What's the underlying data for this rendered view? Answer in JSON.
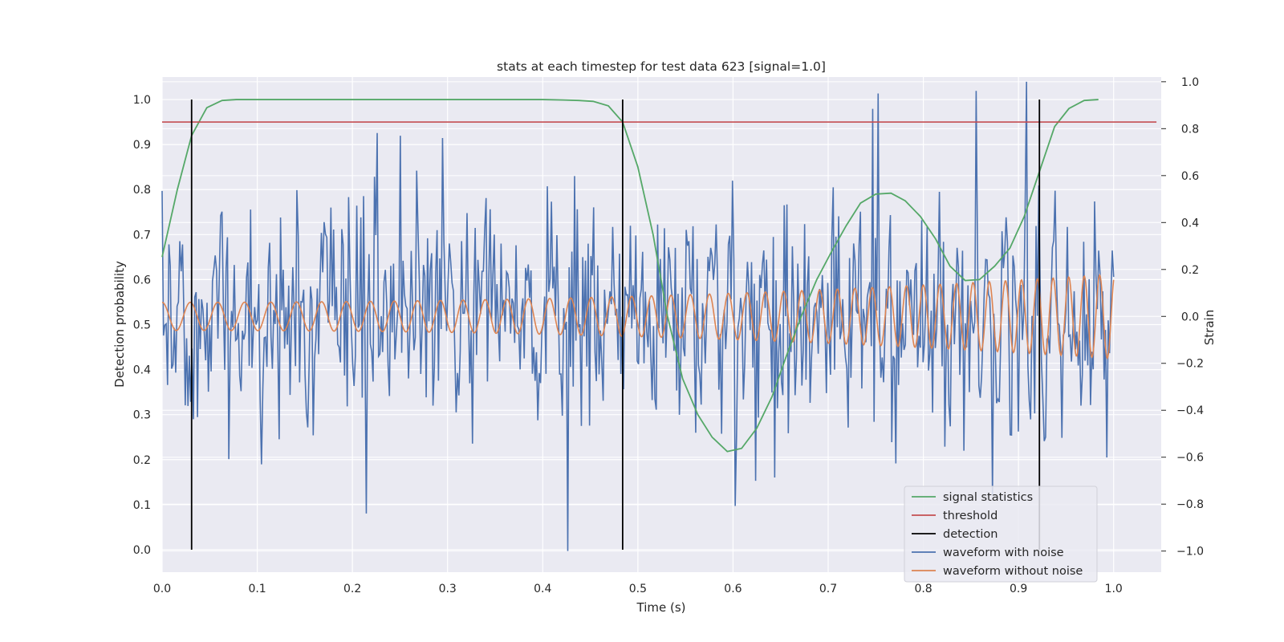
{
  "chart_data": {
    "type": "line",
    "title": "stats at each timestep for test data 623 [signal=1.0]",
    "xlabel": "Time (s)",
    "ylabel_left": "Detection probability",
    "ylabel_right": "Strain",
    "xlim": [
      0.0,
      1.05
    ],
    "ylim_left": [
      -0.05,
      1.05
    ],
    "ylim_right": [
      -1.09,
      1.02
    ],
    "x_ticks": [
      "0.0",
      "0.1",
      "0.2",
      "0.3",
      "0.4",
      "0.5",
      "0.6",
      "0.7",
      "0.8",
      "0.9",
      "1.0"
    ],
    "y_ticks_left": [
      "0.0",
      "0.1",
      "0.2",
      "0.3",
      "0.4",
      "0.5",
      "0.6",
      "0.7",
      "0.8",
      "0.9",
      "1.0"
    ],
    "y_ticks_right": [
      "−1.0",
      "−0.8",
      "−0.6",
      "−0.4",
      "−0.2",
      "0.0",
      "0.2",
      "0.4",
      "0.6",
      "0.8",
      "1.0"
    ],
    "grid": true,
    "legend_position": "lower-right",
    "colors": {
      "signal_statistics": "#55a868",
      "threshold": "#c44e52",
      "detection": "#000000",
      "waveform_with_noise": "#4c72b0",
      "waveform_without_noise": "#dd8452",
      "plot_background": "#eaeaf2",
      "grid": "#ffffff"
    },
    "legend": [
      {
        "key": "signal_statistics",
        "label": "signal statistics"
      },
      {
        "key": "threshold",
        "label": "threshold"
      },
      {
        "key": "detection",
        "label": "detection"
      },
      {
        "key": "waveform_with_noise",
        "label": "waveform with noise"
      },
      {
        "key": "waveform_without_noise",
        "label": "waveform without noise"
      }
    ],
    "series": [
      {
        "name": "signal statistics",
        "axis": "left",
        "x": [
          0.0,
          0.016,
          0.031,
          0.047,
          0.063,
          0.078,
          0.094,
          0.11,
          0.2,
          0.3,
          0.4,
          0.422,
          0.438,
          0.453,
          0.469,
          0.484,
          0.5,
          0.516,
          0.531,
          0.547,
          0.563,
          0.578,
          0.594,
          0.609,
          0.625,
          0.641,
          0.656,
          0.672,
          0.688,
          0.703,
          0.719,
          0.734,
          0.75,
          0.766,
          0.781,
          0.797,
          0.813,
          0.828,
          0.844,
          0.859,
          0.875,
          0.891,
          0.906,
          0.922,
          0.938,
          0.953,
          0.969,
          0.984
        ],
        "y": [
          0.65,
          0.8,
          0.92,
          0.982,
          0.998,
          1.0,
          1.0,
          1.0,
          1.0,
          1.0,
          1.0,
          0.999,
          0.998,
          0.996,
          0.986,
          0.95,
          0.85,
          0.7,
          0.52,
          0.38,
          0.3,
          0.25,
          0.218,
          0.225,
          0.27,
          0.34,
          0.43,
          0.52,
          0.6,
          0.66,
          0.72,
          0.77,
          0.79,
          0.792,
          0.775,
          0.74,
          0.69,
          0.63,
          0.598,
          0.6,
          0.63,
          0.67,
          0.74,
          0.84,
          0.94,
          0.98,
          0.998,
          1.0
        ]
      },
      {
        "name": "threshold",
        "axis": "left",
        "x": [
          0.0,
          1.045
        ],
        "y": [
          0.95,
          0.95
        ]
      },
      {
        "name": "detection",
        "axis": "left",
        "x": [
          0.031,
          0.484,
          0.922
        ],
        "y_range": [
          0.0,
          1.0
        ]
      },
      {
        "name": "waveform with noise",
        "axis": "right",
        "n_points": 700,
        "x_range": [
          0.0,
          1.0
        ],
        "amplitude": "roughly ±0.6 with spikes to ±1.0",
        "notable_points": [
          [
            0.427,
            -1.0
          ],
          [
            0.908,
            1.0
          ],
          [
            0.753,
            0.95
          ],
          [
            0.251,
            0.77
          ],
          [
            0.294,
            0.76
          ],
          [
            0.214,
            -0.84
          ],
          [
            0.873,
            -0.76
          ]
        ]
      },
      {
        "name": "waveform without noise",
        "axis": "right",
        "x_range": [
          0.0,
          1.0
        ],
        "model": "chirp",
        "start_amplitude": 0.06,
        "end_amplitude": 0.18,
        "start_period_s": 0.03,
        "end_period_s": 0.016
      }
    ]
  }
}
